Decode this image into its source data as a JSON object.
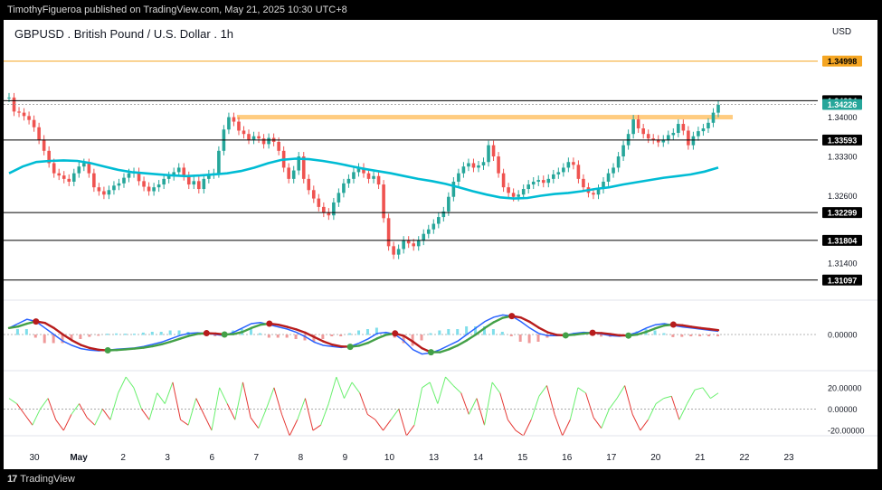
{
  "header": {
    "publisher_line": "TimothyFigueroa published on TradingView.com, May 21, 2025 10:30 UTC+8"
  },
  "footer": {
    "brand": "TradingView"
  },
  "chart_data": {
    "type": "line",
    "title": "GBPUSD . British Pound / U.S. Dollar . 1h",
    "currency": "USD",
    "x_ticks": [
      "30",
      "May",
      "2",
      "3",
      "6",
      "7",
      "8",
      "9",
      "10",
      "13",
      "14",
      "15",
      "16",
      "17",
      "20",
      "21",
      "22",
      "23"
    ],
    "y_ticks_main": [
      "1.34000",
      "1.33300",
      "1.32600",
      "1.31400"
    ],
    "ylim_main": [
      1.309,
      1.3525
    ],
    "price_series": [
      1.3435,
      1.341,
      1.3408,
      1.3402,
      1.3395,
      1.3382,
      1.336,
      1.334,
      1.3318,
      1.33,
      1.3296,
      1.329,
      1.3285,
      1.33,
      1.3312,
      1.3318,
      1.33,
      1.3275,
      1.3268,
      1.3262,
      1.327,
      1.3278,
      1.3282,
      1.3292,
      1.33,
      1.3302,
      1.3286,
      1.3276,
      1.3268,
      1.3275,
      1.328,
      1.329,
      1.3295,
      1.3302,
      1.331,
      1.3295,
      1.328,
      1.3286,
      1.3272,
      1.329,
      1.3298,
      1.33,
      1.334,
      1.3378,
      1.34,
      1.3392,
      1.3376,
      1.337,
      1.336,
      1.3366,
      1.3362,
      1.3352,
      1.3363,
      1.3356,
      1.334,
      1.331,
      1.329,
      1.3305,
      1.333,
      1.329,
      1.327,
      1.3255,
      1.324,
      1.323,
      1.3225,
      1.3248,
      1.3265,
      1.3282,
      1.329,
      1.3302,
      1.331,
      1.33,
      1.329,
      1.3295,
      1.328,
      1.322,
      1.317,
      1.3155,
      1.3165,
      1.318,
      1.3175,
      1.317,
      1.318,
      1.3192,
      1.32,
      1.321,
      1.3222,
      1.3232,
      1.3258,
      1.3285,
      1.33,
      1.3312,
      1.3318,
      1.331,
      1.3314,
      1.332,
      1.335,
      1.333,
      1.33,
      1.3275,
      1.3265,
      1.3258,
      1.3262,
      1.3272,
      1.328,
      1.3285,
      1.3288,
      1.3283,
      1.329,
      1.3298,
      1.3302,
      1.331,
      1.332,
      1.3315,
      1.329,
      1.3275,
      1.3265,
      1.3262,
      1.3272,
      1.3285,
      1.33,
      1.331,
      1.333,
      1.335,
      1.337,
      1.3396,
      1.338,
      1.337,
      1.3362,
      1.336,
      1.3355,
      1.336,
      1.3368,
      1.3372,
      1.3388,
      1.3376,
      1.335,
      1.3366,
      1.3375,
      1.338,
      1.339,
      1.3408,
      1.3422
    ],
    "ema_series": [
      1.33,
      1.3312,
      1.332,
      1.3322,
      1.3323,
      1.3322,
      1.3318,
      1.3312,
      1.3306,
      1.3302,
      1.33,
      1.3298,
      1.3296,
      1.3295,
      1.3296,
      1.3298,
      1.33,
      1.3304,
      1.331,
      1.3318,
      1.3324,
      1.3326,
      1.3325,
      1.3322,
      1.3318,
      1.3313,
      1.3308,
      1.3304,
      1.33,
      1.3295,
      1.329,
      1.3286,
      1.3281,
      1.3275,
      1.3268,
      1.3262,
      1.3257,
      1.3255,
      1.3256,
      1.326,
      1.3263,
      1.3265,
      1.3268,
      1.3272,
      1.3275,
      1.328,
      1.3284,
      1.3288,
      1.3292,
      1.3295,
      1.3298,
      1.3303,
      1.331
    ],
    "levels": [
      {
        "label": "1.34998",
        "value": 1.34998,
        "color": "#f5a623",
        "line": "#f5a623"
      },
      {
        "label": "1.34294",
        "value": 1.34294,
        "color": "#000000",
        "line": "#000000"
      },
      {
        "label": "1.34226",
        "value": 1.34226,
        "color": "#26a69a",
        "line": "#9e9e9e"
      },
      {
        "label": "1.33593",
        "value": 1.33593,
        "color": "#000000",
        "line": "#000000"
      },
      {
        "label": "1.32299",
        "value": 1.32299,
        "color": "#000000",
        "line": "#000000"
      },
      {
        "label": "1.31804",
        "value": 1.31804,
        "color": "#000000",
        "line": "#000000"
      },
      {
        "label": "1.31097",
        "value": 1.31097,
        "color": "#000000",
        "line": "#000000"
      }
    ],
    "resistance_zone": {
      "value": 1.34,
      "color": "#ffcc80"
    },
    "macd": {
      "zero_label": "0.00000",
      "fast_color": "#2962ff",
      "signal_color": "#b71c1c",
      "signal_up_color": "#43a047",
      "values": [
        0.3,
        0.5,
        0.7,
        0.6,
        0.3,
        0.0,
        -0.3,
        -0.5,
        -0.65,
        -0.72,
        -0.75,
        -0.72,
        -0.68,
        -0.65,
        -0.62,
        -0.55,
        -0.45,
        -0.35,
        -0.2,
        -0.05,
        0.05,
        0.08,
        0.05,
        0.0,
        -0.05,
        0.1,
        0.3,
        0.5,
        0.55,
        0.45,
        0.35,
        0.25,
        0.1,
        -0.1,
        -0.35,
        -0.5,
        -0.55,
        -0.6,
        -0.55,
        -0.4,
        -0.2,
        0.05,
        0.1,
        0.0,
        -0.3,
        -0.7,
        -0.9,
        -0.85,
        -0.7,
        -0.5,
        -0.3,
        0.0,
        0.3,
        0.6,
        0.8,
        0.9,
        0.85,
        0.6,
        0.3,
        0.05,
        -0.05,
        -0.05,
        -0.02,
        0.05,
        0.1,
        0.08,
        0.02,
        -0.05,
        -0.08,
        -0.02,
        0.1,
        0.3,
        0.45,
        0.5,
        0.42,
        0.35,
        0.3,
        0.25,
        0.2,
        0.15
      ]
    },
    "oscillator": {
      "y_ticks": [
        "20.00000",
        "0.00000",
        "-20.00000"
      ],
      "ylim": [
        -25,
        30
      ],
      "values": [
        10,
        5,
        -5,
        -15,
        0,
        10,
        -10,
        -20,
        -5,
        5,
        -8,
        -15,
        0,
        -10,
        15,
        30,
        20,
        0,
        -10,
        15,
        5,
        25,
        -10,
        -15,
        10,
        -5,
        -20,
        20,
        5,
        -10,
        25,
        -8,
        -18,
        0,
        20,
        -5,
        -25,
        -10,
        10,
        -20,
        -15,
        5,
        30,
        10,
        25,
        15,
        -5,
        -10,
        -20,
        -10,
        0,
        -25,
        -15,
        20,
        25,
        5,
        30,
        22,
        15,
        -5,
        10,
        -15,
        25,
        15,
        -10,
        -20,
        -25,
        -10,
        12,
        22,
        -5,
        -25,
        -10,
        20,
        15,
        -8,
        -18,
        0,
        10,
        22,
        -5,
        -20,
        -10,
        5,
        10,
        12,
        -10,
        5,
        18,
        20,
        10,
        15
      ]
    }
  }
}
